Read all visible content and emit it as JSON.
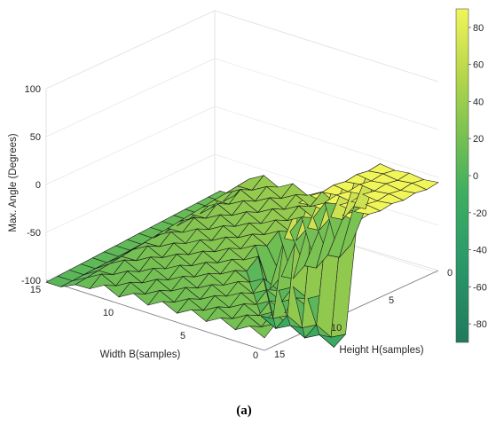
{
  "chart_data": {
    "type": "surface3d",
    "title": "",
    "xlabel": "Width  B(samples)",
    "ylabel": "Height H(samples)",
    "zlabel": "Max. Angle (Degrees)",
    "x_ticks": [
      "15",
      "10",
      "5",
      "0"
    ],
    "y_ticks": [
      "0",
      "5",
      "10",
      "15"
    ],
    "z_ticks": [
      "100",
      "50",
      "0",
      "-50",
      "-100"
    ],
    "xlim": [
      0,
      15
    ],
    "ylim": [
      0,
      15
    ],
    "zlim": [
      -100,
      100
    ],
    "colorbar_ticks": [
      "80",
      "60",
      "40",
      "20",
      "0",
      "-20",
      "-40",
      "-60",
      "-80"
    ],
    "colorbar_range": [
      -90,
      90
    ],
    "colormap": [
      "#1f7a5c",
      "#2b9a6a",
      "#3fae5f",
      "#78c152",
      "#b6d64a",
      "#f0f55a"
    ],
    "grid": true
  },
  "caption": "(a)"
}
